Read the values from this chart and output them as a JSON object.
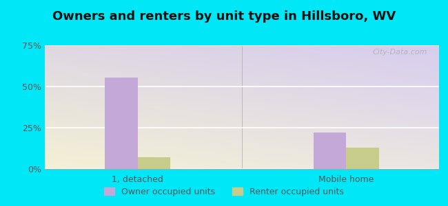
{
  "title": "Owners and renters by unit type in Hillsboro, WV",
  "categories": [
    "1, detached",
    "Mobile home"
  ],
  "owner_values": [
    55.6,
    22.2
  ],
  "renter_values": [
    7.0,
    13.0
  ],
  "owner_color": "#c4a8d8",
  "renter_color": "#c8cc8a",
  "ylim": [
    0,
    75
  ],
  "yticks": [
    0,
    25,
    50,
    75
  ],
  "ytick_labels": [
    "0%",
    "25%",
    "50%",
    "75%"
  ],
  "background_outer": "#00e8f8",
  "bar_width": 0.28,
  "legend_labels": [
    "Owner occupied units",
    "Renter occupied units"
  ],
  "watermark": "City-Data.com",
  "title_fontsize": 13,
  "tick_fontsize": 9,
  "legend_fontsize": 9
}
